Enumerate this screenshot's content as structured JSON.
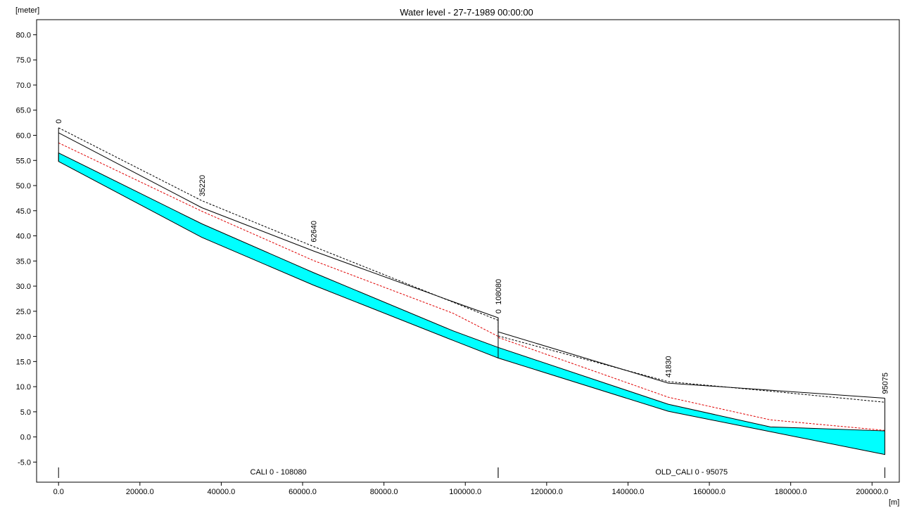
{
  "chart_data": {
    "type": "line",
    "title": "Water level - 27-7-1989 00:00:00",
    "y_unit": "[meter]",
    "x_unit": "[m]",
    "xlim": [
      -5400,
      206700
    ],
    "ylim": [
      -9,
      83
    ],
    "xticks": [
      {
        "value": 0,
        "label": "0.0"
      },
      {
        "value": 20000,
        "label": "20000.0"
      },
      {
        "value": 40000,
        "label": "40000.0"
      },
      {
        "value": 60000,
        "label": "60000.0"
      },
      {
        "value": 80000,
        "label": "80000.0"
      },
      {
        "value": 100000,
        "label": "100000.0"
      },
      {
        "value": 120000,
        "label": "120000.0"
      },
      {
        "value": 140000,
        "label": "140000.0"
      },
      {
        "value": 160000,
        "label": "160000.0"
      },
      {
        "value": 180000,
        "label": "180000.0"
      },
      {
        "value": 200000,
        "label": "200000.0"
      }
    ],
    "yticks": [
      {
        "value": -5,
        "label": "-5.0"
      },
      {
        "value": 0,
        "label": "0.0"
      },
      {
        "value": 5,
        "label": "5.0"
      },
      {
        "value": 10,
        "label": "10.0"
      },
      {
        "value": 15,
        "label": "15.0"
      },
      {
        "value": 20,
        "label": "20.0"
      },
      {
        "value": 25,
        "label": "25.0"
      },
      {
        "value": 30,
        "label": "30.0"
      },
      {
        "value": 35,
        "label": "35.0"
      },
      {
        "value": 40,
        "label": "40.0"
      },
      {
        "value": 45,
        "label": "45.0"
      },
      {
        "value": 50,
        "label": "50.0"
      },
      {
        "value": 55,
        "label": "55.0"
      },
      {
        "value": 60,
        "label": "60.0"
      },
      {
        "value": 65,
        "label": "65.0"
      },
      {
        "value": 70,
        "label": "70.0"
      },
      {
        "value": 75,
        "label": "75.0"
      },
      {
        "value": 80,
        "label": "80.0"
      }
    ],
    "x": [
      0,
      35220,
      62640,
      97000,
      108080,
      108080,
      149910,
      175000,
      203155
    ],
    "band": {
      "color": "#00ffff",
      "lower": [
        54.8,
        39.7,
        30.2,
        19.2,
        15.7,
        15.7,
        5.1,
        1.05,
        -3.5
      ],
      "upper": [
        56.5,
        42.4,
        32.7,
        21.1,
        17.8,
        17.8,
        6.5,
        2.0,
        1.2
      ]
    },
    "series": [
      {
        "color": "#000000",
        "dashed": false,
        "values": [
          60.5,
          45.6,
          37.0,
          26.9,
          23.7,
          20.9,
          10.7,
          9.3,
          7.7
        ]
      },
      {
        "color": "#000000",
        "dashed": true,
        "values": [
          61.5,
          47.0,
          37.9,
          26.8,
          23.2,
          20.1,
          11.0,
          9.1,
          6.9
        ]
      },
      {
        "color": "#e00000",
        "dashed": true,
        "values": [
          58.5,
          44.9,
          35.1,
          24.6,
          20.0,
          19.8,
          7.9,
          3.4,
          1.3
        ]
      }
    ],
    "annotations": [
      {
        "text": "0",
        "x": 0
      },
      {
        "text": "35220",
        "x": 35220
      },
      {
        "text": "62640",
        "x": 62640
      },
      {
        "text": "0",
        "x": 108080
      },
      {
        "text": "108080",
        "x": 108080
      },
      {
        "text": "41830",
        "x": 149910
      },
      {
        "text": "95075",
        "x": 203155
      }
    ],
    "branches": [
      {
        "label": "CALI  0 - 108080",
        "start": 0,
        "end": 108080
      },
      {
        "label": "OLD_CALI  0 - 95075",
        "start": 108080,
        "end": 203155
      }
    ]
  }
}
